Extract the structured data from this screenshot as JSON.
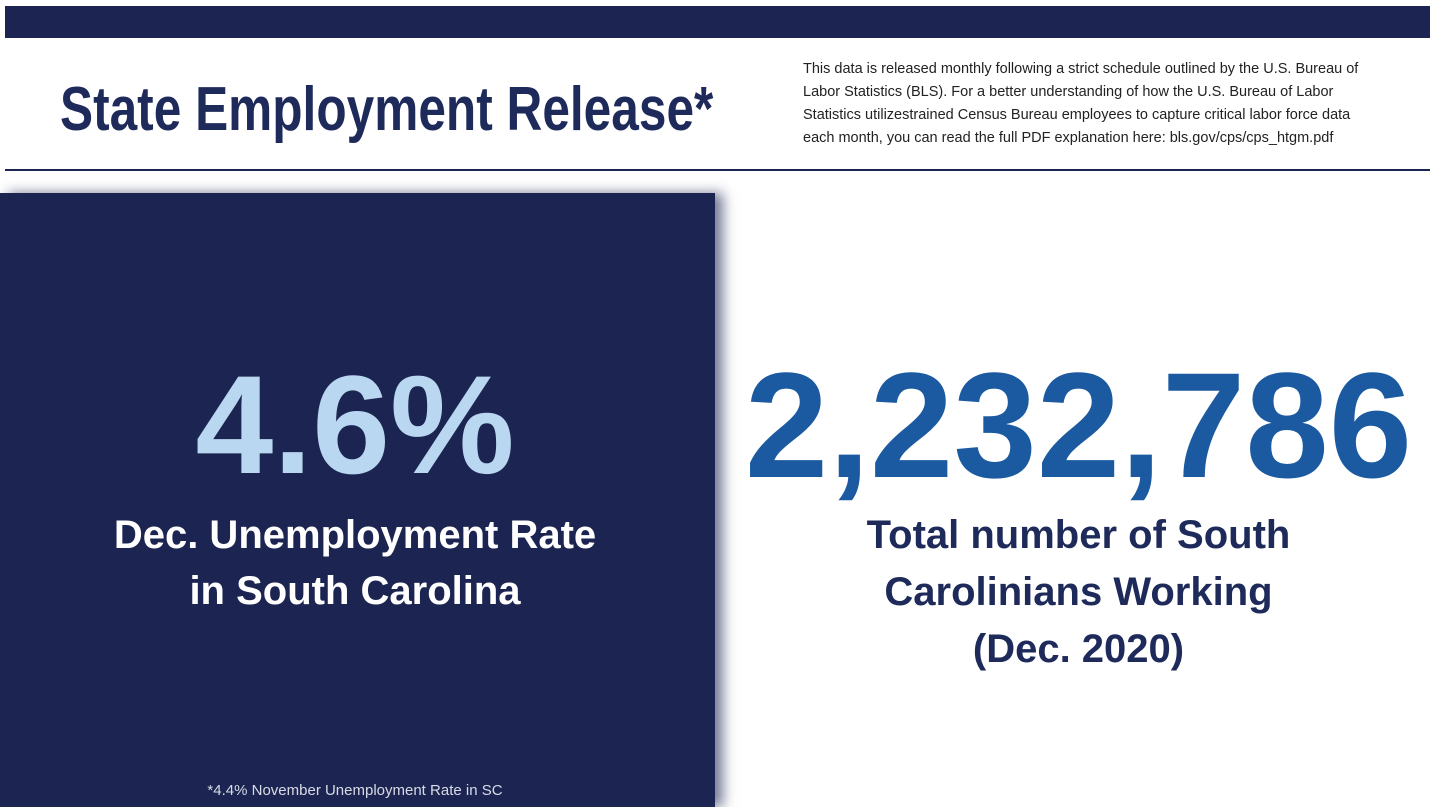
{
  "header": {
    "title": "State Employment Release*",
    "note": [
      "This data is released monthly following a strict schedule outlined by the U.S. Bureau of",
      "Labor Statistics (BLS). For a better understanding of how the U.S. Bureau of Labor",
      "Statistics utilizestrained Census Bureau employees to capture critical labor force data",
      "each month, you can read the full PDF explanation here: bls.gov/cps/cps_htgm.pdf"
    ]
  },
  "left": {
    "value": "4.6%",
    "label": [
      "Dec. Unemployment Rate",
      "in South Carolina"
    ],
    "footnote": "*4.4% November Unemployment Rate in SC"
  },
  "right": {
    "value": "2,232,786",
    "label": [
      "Total number of South",
      "Carolinians Working",
      "(Dec. 2020)"
    ]
  }
}
